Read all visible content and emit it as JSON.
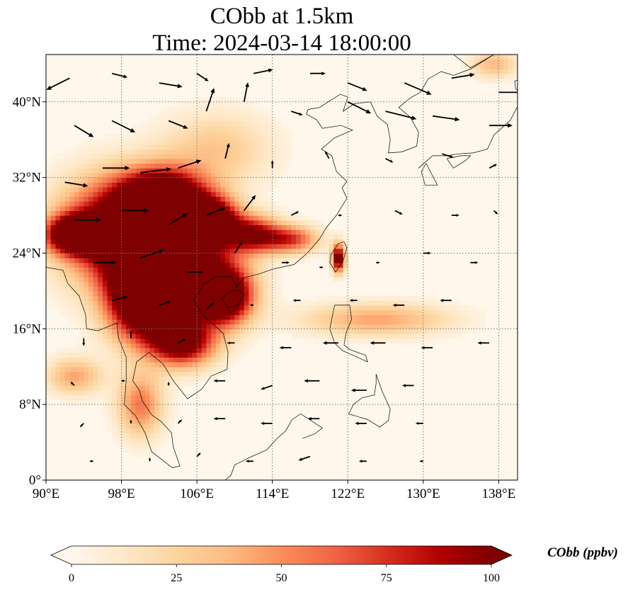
{
  "chart_data": {
    "type": "heatmap",
    "title_lines": [
      "CObb at 1.5km",
      "Time: 2024-03-14 18:00:00"
    ],
    "x_range": [
      90,
      140
    ],
    "y_range": [
      0,
      45
    ],
    "x_ticks": [
      90,
      98,
      106,
      114,
      122,
      130,
      138
    ],
    "x_tick_labels": [
      "90°E",
      "98°E",
      "106°E",
      "114°E",
      "122°E",
      "130°E",
      "138°E"
    ],
    "y_ticks": [
      0,
      8,
      16,
      24,
      32,
      40
    ],
    "y_tick_labels": [
      "0°",
      "8°N",
      "16°N",
      "24°N",
      "32°N",
      "40°N"
    ],
    "grid": true,
    "colorbar": {
      "label": "CObb (ppbv)",
      "min": 0,
      "max": 100,
      "ticks": [
        0,
        25,
        50,
        75,
        100
      ],
      "tick_labels": [
        "0",
        "25",
        "50",
        "75",
        "100"
      ],
      "extend": "both",
      "colormap_stops": [
        "#fff7ec",
        "#fee8c8",
        "#fdd49e",
        "#fdbb84",
        "#fc8d59",
        "#ef6548",
        "#d7301f",
        "#b30000",
        "#7f0000"
      ]
    },
    "field_hotspots": [
      {
        "lon": 98,
        "lat": 26.5,
        "value": 100,
        "r_lon": 6.5,
        "r_lat": 5.5
      },
      {
        "lon": 104,
        "lat": 22,
        "value": 100,
        "r_lon": 6.0,
        "r_lat": 5.5
      },
      {
        "lon": 100.5,
        "lat": 19,
        "value": 100,
        "r_lon": 4.0,
        "r_lat": 4.5
      },
      {
        "lon": 102.5,
        "lat": 30,
        "value": 100,
        "r_lon": 4.5,
        "r_lat": 3.0
      },
      {
        "lon": 107.5,
        "lat": 27.5,
        "value": 95,
        "r_lon": 3.0,
        "r_lat": 2.5
      },
      {
        "lon": 109,
        "lat": 19.5,
        "value": 95,
        "r_lon": 3.0,
        "r_lat": 3.0
      },
      {
        "lon": 104.5,
        "lat": 14.5,
        "value": 80,
        "r_lon": 3.5,
        "r_lat": 2.5
      },
      {
        "lon": 93,
        "lat": 26,
        "value": 100,
        "r_lon": 3.0,
        "r_lat": 2.0
      },
      {
        "lon": 112,
        "lat": 26,
        "value": 70,
        "r_lon": 3.0,
        "r_lat": 2.0
      },
      {
        "lon": 116,
        "lat": 25.5,
        "value": 55,
        "r_lon": 3.0,
        "r_lat": 1.5
      },
      {
        "lon": 121,
        "lat": 23.5,
        "value": 95,
        "r_lon": 0.7,
        "r_lat": 1.5
      },
      {
        "lon": 100,
        "lat": 8,
        "value": 45,
        "r_lon": 2.5,
        "r_lat": 3.5
      },
      {
        "lon": 125,
        "lat": 17,
        "value": 35,
        "r_lon": 8.0,
        "r_lat": 1.8
      },
      {
        "lon": 93,
        "lat": 11,
        "value": 35,
        "r_lon": 3.0,
        "r_lat": 2.0
      },
      {
        "lon": 137.5,
        "lat": 44,
        "value": 30,
        "r_lon": 2.5,
        "r_lat": 1.5
      },
      {
        "lon": 108,
        "lat": 35,
        "value": 25,
        "r_lon": 6.0,
        "r_lat": 4.0
      }
    ],
    "wind_vectors": [
      {
        "lon": 92.5,
        "lat": 42.5,
        "u": -6,
        "v": -3
      },
      {
        "lon": 97,
        "lat": 43,
        "u": 4,
        "v": -1
      },
      {
        "lon": 102,
        "lat": 42,
        "u": 6,
        "v": -1
      },
      {
        "lon": 106,
        "lat": 43,
        "u": 3,
        "v": -2
      },
      {
        "lon": 112,
        "lat": 43,
        "u": 5,
        "v": 1
      },
      {
        "lon": 118,
        "lat": 43,
        "u": 4,
        "v": 0
      },
      {
        "lon": 122,
        "lat": 42,
        "u": 5,
        "v": -2
      },
      {
        "lon": 128,
        "lat": 42,
        "u": 7,
        "v": -3
      },
      {
        "lon": 133,
        "lat": 42.5,
        "u": 6,
        "v": 1
      },
      {
        "lon": 138,
        "lat": 41,
        "u": 7,
        "v": 0
      },
      {
        "lon": 93,
        "lat": 37.5,
        "u": 5,
        "v": -3
      },
      {
        "lon": 97,
        "lat": 38,
        "u": 6,
        "v": -3
      },
      {
        "lon": 103,
        "lat": 38,
        "u": 5,
        "v": -2
      },
      {
        "lon": 107,
        "lat": 39,
        "u": 2,
        "v": 6
      },
      {
        "lon": 111,
        "lat": 40,
        "u": 1,
        "v": 5
      },
      {
        "lon": 116,
        "lat": 39,
        "u": 3,
        "v": -1
      },
      {
        "lon": 122,
        "lat": 40,
        "u": 6,
        "v": -3
      },
      {
        "lon": 126,
        "lat": 39,
        "u": 8,
        "v": -2
      },
      {
        "lon": 131,
        "lat": 38.5,
        "u": 7,
        "v": -1
      },
      {
        "lon": 137,
        "lat": 37.5,
        "u": 6,
        "v": 0
      },
      {
        "lon": 92,
        "lat": 31.5,
        "u": 6,
        "v": -1
      },
      {
        "lon": 96,
        "lat": 33,
        "u": 7,
        "v": 0
      },
      {
        "lon": 100,
        "lat": 32.5,
        "u": 8,
        "v": 1
      },
      {
        "lon": 104,
        "lat": 33,
        "u": 6,
        "v": 2
      },
      {
        "lon": 109,
        "lat": 34,
        "u": 1,
        "v": 4
      },
      {
        "lon": 114,
        "lat": 33,
        "u": 0,
        "v": 2
      },
      {
        "lon": 120,
        "lat": 34,
        "u": -1,
        "v": 2
      },
      {
        "lon": 126,
        "lat": 34,
        "u": 2,
        "v": -1
      },
      {
        "lon": 132,
        "lat": 34.5,
        "u": 3,
        "v": -1
      },
      {
        "lon": 137,
        "lat": 33,
        "u": 2,
        "v": 1
      },
      {
        "lon": 93,
        "lat": 27.5,
        "u": 7,
        "v": 0
      },
      {
        "lon": 98,
        "lat": 28.5,
        "u": 7,
        "v": 0
      },
      {
        "lon": 103,
        "lat": 27,
        "u": 5,
        "v": 3
      },
      {
        "lon": 107,
        "lat": 28,
        "u": 5,
        "v": 2
      },
      {
        "lon": 111,
        "lat": 28.5,
        "u": 3,
        "v": 4
      },
      {
        "lon": 116,
        "lat": 28,
        "u": 2,
        "v": 1
      },
      {
        "lon": 121,
        "lat": 28,
        "u": 1,
        "v": 0
      },
      {
        "lon": 127,
        "lat": 28.5,
        "u": 2,
        "v": -1
      },
      {
        "lon": 133,
        "lat": 28,
        "u": 2,
        "v": 0
      },
      {
        "lon": 137.5,
        "lat": 28.5,
        "u": 1,
        "v": -1
      },
      {
        "lon": 95,
        "lat": 23,
        "u": 6,
        "v": 0
      },
      {
        "lon": 100,
        "lat": 23.5,
        "u": 6,
        "v": 2
      },
      {
        "lon": 105,
        "lat": 22,
        "u": 4,
        "v": 0
      },
      {
        "lon": 110,
        "lat": 24,
        "u": 2,
        "v": 3
      },
      {
        "lon": 115,
        "lat": 23,
        "u": 2,
        "v": 0
      },
      {
        "lon": 119,
        "lat": 22.5,
        "u": 1,
        "v": 0
      },
      {
        "lon": 125,
        "lat": 23,
        "u": 1,
        "v": 0
      },
      {
        "lon": 130,
        "lat": 24,
        "u": 2,
        "v": 0
      },
      {
        "lon": 135,
        "lat": 23,
        "u": 2,
        "v": 0
      },
      {
        "lon": 97,
        "lat": 19,
        "u": 4,
        "v": 1
      },
      {
        "lon": 102,
        "lat": 18.5,
        "u": 3,
        "v": 1
      },
      {
        "lon": 107,
        "lat": 18,
        "u": 2,
        "v": 2
      },
      {
        "lon": 112,
        "lat": 18.5,
        "u": -1,
        "v": 0
      },
      {
        "lon": 117,
        "lat": 19,
        "u": -2,
        "v": 0
      },
      {
        "lon": 123,
        "lat": 19,
        "u": -2,
        "v": 0
      },
      {
        "lon": 128,
        "lat": 18.5,
        "u": -3,
        "v": 0
      },
      {
        "lon": 133,
        "lat": 19,
        "u": -3,
        "v": 0
      },
      {
        "lon": 94,
        "lat": 15,
        "u": 0,
        "v": -2
      },
      {
        "lon": 99,
        "lat": 15,
        "u": 0,
        "v": 2
      },
      {
        "lon": 104,
        "lat": 14.5,
        "u": 2,
        "v": 1
      },
      {
        "lon": 110,
        "lat": 14.5,
        "u": -2,
        "v": 0
      },
      {
        "lon": 116,
        "lat": 14,
        "u": -3,
        "v": 0
      },
      {
        "lon": 121,
        "lat": 14.5,
        "u": -4,
        "v": 0
      },
      {
        "lon": 126,
        "lat": 14.5,
        "u": -4,
        "v": 0
      },
      {
        "lon": 131,
        "lat": 14,
        "u": -3,
        "v": 0
      },
      {
        "lon": 137,
        "lat": 14.5,
        "u": -3,
        "v": 0
      },
      {
        "lon": 93,
        "lat": 10,
        "u": -1,
        "v": 1
      },
      {
        "lon": 98,
        "lat": 10.5,
        "u": 1,
        "v": 0
      },
      {
        "lon": 103,
        "lat": 10,
        "u": 0,
        "v": 1
      },
      {
        "lon": 109,
        "lat": 10.5,
        "u": -3,
        "v": 0
      },
      {
        "lon": 114,
        "lat": 10,
        "u": -3,
        "v": -1
      },
      {
        "lon": 119,
        "lat": 10.5,
        "u": -4,
        "v": 0
      },
      {
        "lon": 124,
        "lat": 9.5,
        "u": -4,
        "v": 0
      },
      {
        "lon": 129,
        "lat": 10,
        "u": -3,
        "v": 0
      },
      {
        "lon": 94,
        "lat": 6,
        "u": -1,
        "v": -1
      },
      {
        "lon": 99,
        "lat": 6,
        "u": 0,
        "v": 1
      },
      {
        "lon": 104,
        "lat": 6,
        "u": 1,
        "v": 1
      },
      {
        "lon": 109,
        "lat": 6.5,
        "u": -3,
        "v": 0
      },
      {
        "lon": 114,
        "lat": 6,
        "u": -3,
        "v": 0
      },
      {
        "lon": 119,
        "lat": 6.5,
        "u": -3,
        "v": 0
      },
      {
        "lon": 124,
        "lat": 6,
        "u": -3,
        "v": 0
      },
      {
        "lon": 130,
        "lat": 6,
        "u": -2,
        "v": 0
      },
      {
        "lon": 95,
        "lat": 2,
        "u": -1,
        "v": 0
      },
      {
        "lon": 101,
        "lat": 2,
        "u": 0,
        "v": 1
      },
      {
        "lon": 106,
        "lat": 2.5,
        "u": 1,
        "v": 1
      },
      {
        "lon": 112,
        "lat": 2,
        "u": -2,
        "v": 0
      },
      {
        "lon": 118,
        "lat": 2.5,
        "u": -3,
        "v": -1
      },
      {
        "lon": 124,
        "lat": 2,
        "u": -2,
        "v": 0
      },
      {
        "lon": 130,
        "lat": 2,
        "u": -1,
        "v": 0
      }
    ],
    "land_outlines": [
      [
        [
          90,
          22.5
        ],
        [
          91.8,
          22.2
        ],
        [
          92.3,
          20.8
        ],
        [
          93.5,
          19.5
        ],
        [
          94.2,
          17.5
        ],
        [
          94.3,
          16
        ],
        [
          95.5,
          15.8
        ],
        [
          97.5,
          16.6
        ],
        [
          97.7,
          15
        ],
        [
          98.5,
          13
        ],
        [
          98.5,
          10.5
        ],
        [
          98.3,
          8
        ],
        [
          99.5,
          6.8
        ],
        [
          100.5,
          5
        ],
        [
          101.2,
          3
        ],
        [
          103.4,
          1.3
        ],
        [
          104.2,
          1.5
        ],
        [
          103.5,
          3.5
        ],
        [
          103.3,
          5
        ],
        [
          102.2,
          6.2
        ],
        [
          101.2,
          6.9
        ],
        [
          100.2,
          8.4
        ],
        [
          99.9,
          9.5
        ],
        [
          99.2,
          10.5
        ],
        [
          99.6,
          12.5
        ],
        [
          100.9,
          13.5
        ],
        [
          102.4,
          12.3
        ],
        [
          103.5,
          10.5
        ],
        [
          105,
          8.6
        ],
        [
          106.5,
          9.6
        ],
        [
          107.5,
          11
        ],
        [
          109.2,
          11.7
        ],
        [
          109.3,
          13.5
        ],
        [
          108.8,
          15.5
        ],
        [
          106.6,
          17.5
        ],
        [
          105.7,
          19
        ],
        [
          106.7,
          20.7
        ],
        [
          108,
          21.5
        ],
        [
          109.7,
          21.5
        ],
        [
          110.2,
          20.4
        ],
        [
          111,
          21.4
        ],
        [
          112.6,
          21.8
        ],
        [
          114,
          22.3
        ],
        [
          116.3,
          22.8
        ],
        [
          117.7,
          24
        ],
        [
          119,
          25.5
        ],
        [
          119.8,
          26.8
        ],
        [
          120.8,
          28
        ],
        [
          121.9,
          29.8
        ],
        [
          121.4,
          30.9
        ],
        [
          121.9,
          31.6
        ],
        [
          120.8,
          32.6
        ],
        [
          120.3,
          34.3
        ],
        [
          119.2,
          35
        ],
        [
          120.6,
          36.2
        ],
        [
          122.5,
          37
        ],
        [
          121.3,
          37.5
        ],
        [
          119.3,
          37.2
        ],
        [
          118.7,
          38.1
        ],
        [
          117.6,
          38.7
        ],
        [
          117.8,
          39.2
        ],
        [
          119,
          39.4
        ],
        [
          121.2,
          40.8
        ],
        [
          122,
          40.5
        ],
        [
          121.5,
          39
        ],
        [
          122.7,
          39.8
        ],
        [
          124.4,
          40
        ],
        [
          125.1,
          38.5
        ],
        [
          126.2,
          37.6
        ],
        [
          126.5,
          36
        ],
        [
          126.3,
          34.6
        ],
        [
          127.7,
          34.7
        ],
        [
          129.3,
          35.3
        ],
        [
          129.5,
          36.8
        ],
        [
          128.6,
          38.4
        ],
        [
          127.4,
          39.4
        ],
        [
          128.6,
          40.4
        ],
        [
          129.7,
          41
        ],
        [
          130.5,
          42.4
        ],
        [
          131.9,
          43.2
        ],
        [
          133.2,
          42.8
        ],
        [
          135.1,
          43.5
        ],
        [
          137.5,
          45
        ]
      ],
      [
        [
          120.1,
          23
        ],
        [
          120.7,
          22
        ],
        [
          121.5,
          23.2
        ],
        [
          121.9,
          24.6
        ],
        [
          121.6,
          25.2
        ],
        [
          121,
          25
        ],
        [
          120.2,
          23.8
        ],
        [
          120.1,
          23
        ]
      ],
      [
        [
          108.6,
          19.2
        ],
        [
          109.3,
          18.2
        ],
        [
          110.4,
          18.5
        ],
        [
          111,
          19.7
        ],
        [
          110.3,
          20.1
        ],
        [
          109.6,
          20
        ],
        [
          108.6,
          19.2
        ]
      ],
      [
        [
          120.6,
          18.5
        ],
        [
          122.2,
          18.5
        ],
        [
          122.4,
          17
        ],
        [
          121.8,
          15.5
        ],
        [
          121.6,
          14.3
        ],
        [
          122.2,
          13.8
        ],
        [
          123.9,
          13.2
        ],
        [
          124.1,
          12.5
        ],
        [
          123,
          13
        ],
        [
          121.4,
          13.7
        ],
        [
          120.6,
          14.5
        ],
        [
          120.1,
          16
        ],
        [
          120.4,
          17.5
        ],
        [
          120.6,
          18.5
        ]
      ],
      [
        [
          125,
          11.2
        ],
        [
          125.6,
          9.5
        ],
        [
          126.5,
          7.5
        ],
        [
          126.3,
          6.3
        ],
        [
          125.4,
          5.6
        ],
        [
          124.1,
          6.4
        ],
        [
          122.1,
          7
        ],
        [
          122.6,
          8
        ],
        [
          123.5,
          8.7
        ],
        [
          124.8,
          9
        ],
        [
          125,
          10.2
        ],
        [
          125,
          11.2
        ]
      ],
      [
        [
          117.2,
          4.4
        ],
        [
          118.5,
          4.9
        ],
        [
          119.3,
          5.5
        ],
        [
          117.8,
          6.5
        ],
        [
          117,
          7
        ],
        [
          116.1,
          6.4
        ],
        [
          115.4,
          5.2
        ],
        [
          114.5,
          4.4
        ],
        [
          113.4,
          3.2
        ],
        [
          111.6,
          2.4
        ],
        [
          110,
          1.6
        ],
        [
          109.6,
          0.5
        ],
        [
          109,
          0
        ]
      ],
      [
        [
          129.5,
          33
        ],
        [
          131,
          34.3
        ],
        [
          132.5,
          34.3
        ],
        [
          133.8,
          34.5
        ],
        [
          135.3,
          34.6
        ],
        [
          136.8,
          35
        ],
        [
          137.5,
          36.5
        ],
        [
          139.2,
          38
        ],
        [
          140,
          39.5
        ],
        [
          140,
          33
        ]
      ],
      [
        [
          130.3,
          33.5
        ],
        [
          131.5,
          31.2
        ],
        [
          130.2,
          31.2
        ],
        [
          129.8,
          32.6
        ],
        [
          130.3,
          33.5
        ]
      ],
      [
        [
          132.5,
          34
        ],
        [
          133.2,
          33
        ],
        [
          134.5,
          33.8
        ],
        [
          135,
          34.3
        ],
        [
          134,
          34.3
        ],
        [
          132.5,
          34
        ]
      ],
      [
        [
          133.2,
          45
        ],
        [
          135,
          43.6
        ],
        [
          136.8,
          44.6
        ],
        [
          137.5,
          45
        ]
      ],
      [
        [
          140,
          42.3
        ],
        [
          139.7,
          42.2
        ],
        [
          139.8,
          41.4
        ],
        [
          140,
          41.2
        ]
      ]
    ]
  }
}
